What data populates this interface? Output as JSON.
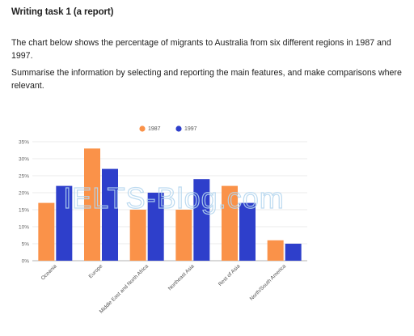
{
  "task": {
    "heading": "Writing task 1 (a report)",
    "prompt": "The chart below shows the percentage of migrants to Australia from six different regions in 1987 and 1997.",
    "instruction": "Summarise the information by selecting and reporting the main features, and make comparisons where relevant."
  },
  "watermark": "IELTS-Blog.com",
  "chart_data": {
    "type": "bar",
    "categories": [
      "Oceania",
      "Europe",
      "Middle East and North Africa",
      "Northeast Asia",
      "Rest of Asia",
      "North/South America"
    ],
    "series": [
      {
        "name": "1987",
        "color": "#fa9249",
        "values": [
          17,
          33,
          15,
          15,
          22,
          6
        ]
      },
      {
        "name": "1997",
        "color": "#2e3fcb",
        "values": [
          22,
          27,
          20,
          24,
          17,
          5
        ]
      }
    ],
    "yticks": [
      "0%",
      "5%",
      "10%",
      "15%",
      "20%",
      "25%",
      "30%",
      "35%"
    ],
    "ylim": [
      0,
      35
    ],
    "grid": true,
    "legend_position": "top-center"
  }
}
